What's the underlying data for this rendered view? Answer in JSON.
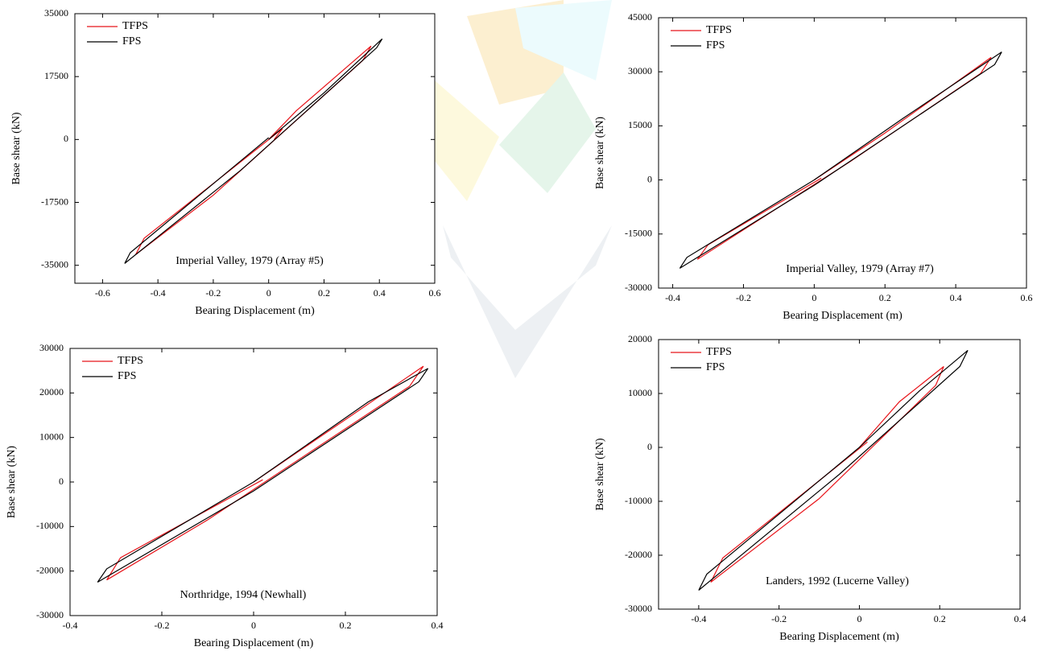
{
  "chart_data": [
    {
      "type": "line",
      "annotation": "Imperial Valley, 1979 (Array #5)",
      "x_label": "Bearing Displacement (m)",
      "y_label": "Base shear (kN)",
      "xlim": [
        -0.7,
        0.6
      ],
      "xticks": [
        -0.6,
        -0.4,
        -0.2,
        0,
        0.2,
        0.4,
        0.6
      ],
      "ylim": [
        -40000,
        35000
      ],
      "yticks": [
        -35000,
        -17500,
        0,
        17500,
        35000
      ],
      "legend": "upper left",
      "series": [
        {
          "name": "TFPS",
          "color": "#e8141a",
          "x": [
            0,
            0.1,
            0.37,
            0.34,
            -0.2,
            -0.48,
            -0.45,
            0.05,
            0.02
          ],
          "values": [
            0,
            8000,
            26000,
            22000,
            -15500,
            -32000,
            -27500,
            3000,
            0
          ]
        },
        {
          "name": "FPS",
          "color": "#000000",
          "x": [
            0,
            0.2,
            0.41,
            0.39,
            -0.1,
            -0.52,
            -0.5,
            0
          ],
          "values": [
            0,
            13000,
            28000,
            25500,
            -8500,
            -34500,
            -31500,
            500
          ]
        }
      ]
    },
    {
      "type": "line",
      "annotation": "Imperial Valley, 1979 (Array #7)",
      "x_label": "Bearing Displacement (m)",
      "y_label": "Base shear (kN)",
      "xlim": [
        -0.44,
        0.6
      ],
      "xticks": [
        -0.4,
        -0.2,
        0,
        0.2,
        0.4,
        0.6
      ],
      "ylim": [
        -30000,
        45000
      ],
      "yticks": [
        -30000,
        -15000,
        0,
        15000,
        30000,
        45000
      ],
      "legend": "upper left",
      "series": [
        {
          "name": "TFPS",
          "color": "#e8141a",
          "x": [
            0,
            0.2,
            0.5,
            0.47,
            0.1,
            -0.33,
            -0.3,
            0.02
          ],
          "values": [
            0,
            13000,
            34000,
            29500,
            5000,
            -22000,
            -18000,
            500
          ]
        },
        {
          "name": "FPS",
          "color": "#000000",
          "x": [
            0,
            0.25,
            0.53,
            0.51,
            0,
            -0.38,
            -0.36,
            0
          ],
          "values": [
            0,
            17000,
            35500,
            32000,
            -1500,
            -24500,
            -21500,
            0
          ]
        }
      ]
    },
    {
      "type": "line",
      "annotation": "Northridge, 1994 (Newhall)",
      "x_label": "Bearing Displacement (m)",
      "y_label": "Base shear (kN)",
      "xlim": [
        -0.4,
        0.4
      ],
      "xticks": [
        -0.4,
        -0.2,
        0,
        0.2,
        0.4
      ],
      "ylim": [
        -30000,
        30000
      ],
      "yticks": [
        -30000,
        -20000,
        -10000,
        0,
        10000,
        20000,
        30000
      ],
      "legend": "upper left",
      "series": [
        {
          "name": "TFPS",
          "color": "#e8141a",
          "x": [
            0,
            0.2,
            0.37,
            0.34,
            -0.1,
            -0.32,
            -0.29,
            0.02
          ],
          "values": [
            0,
            14000,
            26000,
            21500,
            -8500,
            -22000,
            -17000,
            500
          ]
        },
        {
          "name": "FPS",
          "color": "#000000",
          "x": [
            0,
            0.25,
            0.38,
            0.36,
            0,
            -0.34,
            -0.32,
            0
          ],
          "values": [
            0,
            18000,
            25500,
            22500,
            -2000,
            -22500,
            -19500,
            0
          ]
        }
      ]
    },
    {
      "type": "line",
      "annotation": "Landers, 1992 (Lucerne Valley)",
      "x_label": "Bearing Displacement (m)",
      "y_label": "Base shear (kN)",
      "xlim": [
        -0.5,
        0.4
      ],
      "xticks": [
        -0.4,
        -0.2,
        0,
        0.2,
        0.4
      ],
      "ylim": [
        -30000,
        20000
      ],
      "yticks": [
        -30000,
        -20000,
        -10000,
        0,
        10000,
        20000
      ],
      "legend": "upper left",
      "series": [
        {
          "name": "TFPS",
          "color": "#e8141a",
          "x": [
            0,
            0.1,
            0.21,
            0.19,
            -0.1,
            -0.37,
            -0.34,
            0.02
          ],
          "values": [
            0,
            8500,
            15000,
            11500,
            -9500,
            -25000,
            -20500,
            1000
          ]
        },
        {
          "name": "FPS",
          "color": "#000000",
          "x": [
            0,
            0.15,
            0.27,
            0.25,
            -0.05,
            -0.4,
            -0.38,
            0
          ],
          "values": [
            0,
            10500,
            18000,
            15000,
            -5000,
            -26500,
            -23500,
            0
          ]
        }
      ]
    }
  ]
}
